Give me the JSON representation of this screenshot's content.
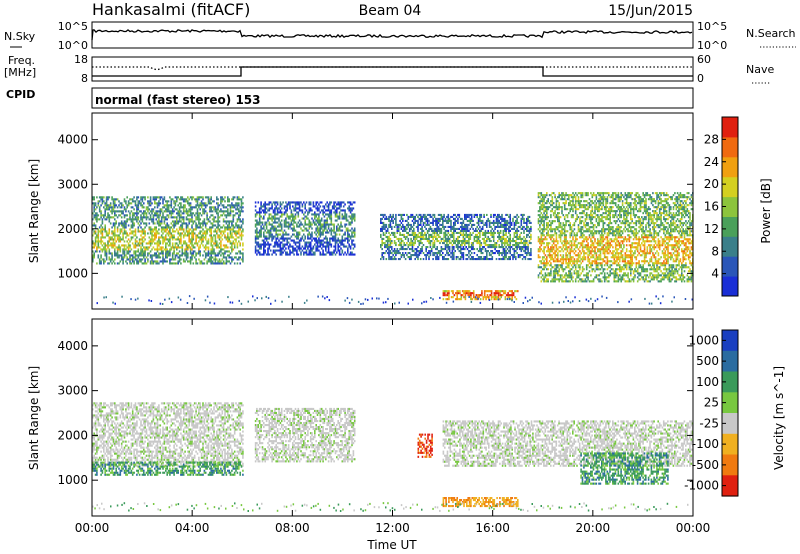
{
  "header": {
    "station": "Hankasalmi (fitACF)",
    "beam": "Beam 04",
    "date": "15/Jun/2015"
  },
  "status_panels": {
    "nsky": {
      "label": "N.Sky",
      "ticks": [
        "10^5",
        "10^0"
      ]
    },
    "nsearch": {
      "label": "N.Search",
      "ticks": [
        "10^5",
        "10^0"
      ]
    },
    "freq": {
      "label": "Freq.",
      "unit": "[MHz]",
      "ticks": [
        "18",
        "8"
      ]
    },
    "nave": {
      "label": "Nave",
      "ticks": [
        "60",
        "0"
      ]
    },
    "cpid": {
      "label": "CPID",
      "value": "normal (fast stereo) 153"
    }
  },
  "chart_data": [
    {
      "type": "heatmap",
      "panel": "power",
      "xlabel": "Time UT",
      "ylabel": "Slant Range [km]",
      "xlim": [
        0,
        24
      ],
      "ylim": [
        200,
        4600
      ],
      "x_ticks": [
        "00:00",
        "04:00",
        "08:00",
        "12:00",
        "16:00",
        "20:00",
        "00:00"
      ],
      "y_ticks": [
        1000,
        2000,
        3000,
        4000
      ],
      "colorbar": {
        "label": "Power [dB]",
        "ticks": [
          4,
          8,
          12,
          16,
          20,
          24,
          28
        ],
        "range": [
          0,
          32
        ],
        "colors": [
          "#1a2fd6",
          "#2a56b8",
          "#3a7f8a",
          "#4aa05a",
          "#8cc43c",
          "#d4d020",
          "#f0a010",
          "#f06a10",
          "#e02010"
        ]
      },
      "regions": [
        {
          "t": [
            0.0,
            6.0
          ],
          "r": [
            1200,
            2700
          ],
          "level": 3,
          "peak_range": [
            1500,
            2000
          ]
        },
        {
          "t": [
            6.5,
            10.5
          ],
          "r": [
            1400,
            2600
          ],
          "level": 1,
          "peak_range": [
            1800,
            2300
          ]
        },
        {
          "t": [
            11.5,
            17.5
          ],
          "r": [
            1300,
            2300
          ],
          "level": 2,
          "peak_range": [
            1600,
            1900
          ]
        },
        {
          "t": [
            14.0,
            17.0
          ],
          "r": [
            400,
            600
          ],
          "level": 6,
          "peak_range": [
            450,
            550
          ]
        },
        {
          "t": [
            17.8,
            24.0
          ],
          "r": [
            800,
            2800
          ],
          "level": 4,
          "peak_range": [
            1200,
            1800
          ]
        }
      ]
    },
    {
      "type": "heatmap",
      "panel": "velocity",
      "xlabel": "Time UT",
      "ylabel": "Slant Range [km]",
      "xlim": [
        0,
        24
      ],
      "ylim": [
        200,
        4600
      ],
      "x_ticks": [
        "00:00",
        "04:00",
        "08:00",
        "12:00",
        "16:00",
        "20:00",
        "00:00"
      ],
      "y_ticks": [
        1000,
        2000,
        3000,
        4000
      ],
      "colorbar": {
        "label": "Velocity [m s^-1]",
        "ticks": [
          "1000",
          "500",
          "100",
          "25",
          "-25",
          "-100",
          "-500",
          "-1000"
        ],
        "colors": [
          "#1a3fc0",
          "#2a6ca0",
          "#3a9a5a",
          "#78c840",
          "#c8c8c8",
          "#f0b020",
          "#f07a10",
          "#e02010"
        ]
      },
      "regions": [
        {
          "t": [
            0.0,
            6.0
          ],
          "r": [
            1300,
            2700
          ],
          "class": "ground-scatter"
        },
        {
          "t": [
            0.0,
            6.0
          ],
          "r": [
            1100,
            1400
          ],
          "class": "positive"
        },
        {
          "t": [
            6.5,
            10.5
          ],
          "r": [
            1400,
            2600
          ],
          "class": "ground-scatter"
        },
        {
          "t": [
            13.0,
            13.6
          ],
          "r": [
            1500,
            2000
          ],
          "class": "strong-negative"
        },
        {
          "t": [
            14.0,
            17.0
          ],
          "r": [
            400,
            600
          ],
          "class": "negative"
        },
        {
          "t": [
            14.0,
            24.0
          ],
          "r": [
            1300,
            2300
          ],
          "class": "ground-scatter"
        },
        {
          "t": [
            19.5,
            23.0
          ],
          "r": [
            900,
            1600
          ],
          "class": "positive"
        }
      ]
    }
  ]
}
